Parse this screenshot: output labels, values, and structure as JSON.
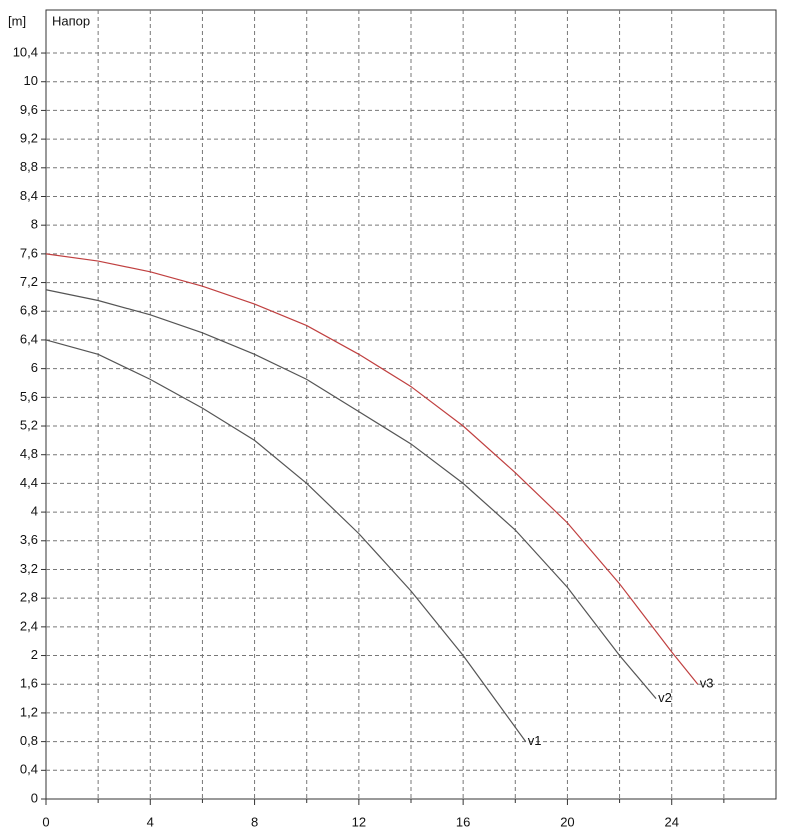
{
  "chart_data": {
    "type": "line",
    "y_unit": "[m]",
    "y_label": "Напор",
    "xlim": [
      0,
      28
    ],
    "ylim": [
      0,
      11
    ],
    "xticks": [
      0,
      4,
      8,
      12,
      16,
      20,
      24
    ],
    "x_minor_ticks": [
      2,
      6,
      10,
      14,
      18,
      22,
      26
    ],
    "yticks": [
      0,
      {
        "value": 0.4,
        "label": "0,4"
      },
      {
        "value": 0.8,
        "label": "0,8"
      },
      {
        "value": 1.2,
        "label": "1,2"
      },
      {
        "value": 1.6,
        "label": "1,6"
      },
      2,
      {
        "value": 2.4,
        "label": "2,4"
      },
      {
        "value": 2.8,
        "label": "2,8"
      },
      {
        "value": 3.2,
        "label": "3,2"
      },
      {
        "value": 3.6,
        "label": "3,6"
      },
      4,
      {
        "value": 4.4,
        "label": "4,4"
      },
      {
        "value": 4.8,
        "label": "4,8"
      },
      {
        "value": 5.2,
        "label": "5,2"
      },
      {
        "value": 5.6,
        "label": "5,6"
      },
      6,
      {
        "value": 6.4,
        "label": "6,4"
      },
      {
        "value": 6.8,
        "label": "6,8"
      },
      {
        "value": 7.2,
        "label": "7,2"
      },
      {
        "value": 7.6,
        "label": "7,6"
      },
      8,
      {
        "value": 8.4,
        "label": "8,4"
      },
      {
        "value": 8.8,
        "label": "8,8"
      },
      {
        "value": 9.2,
        "label": "9,2"
      },
      {
        "value": 9.6,
        "label": "9,6"
      },
      10,
      {
        "value": 10.4,
        "label": "10,4"
      }
    ],
    "grid": true,
    "series": [
      {
        "name": "v1",
        "color": "#555555",
        "x": [
          0,
          2,
          4,
          6,
          8,
          10,
          12,
          14,
          16,
          17,
          18.4
        ],
        "values": [
          6.4,
          6.2,
          5.85,
          5.45,
          5.0,
          4.4,
          3.7,
          2.9,
          2.0,
          1.5,
          0.8
        ]
      },
      {
        "name": "v2",
        "color": "#555555",
        "x": [
          0,
          2,
          4,
          6,
          8,
          10,
          12,
          14,
          16,
          18,
          20,
          22,
          23.4
        ],
        "values": [
          7.1,
          6.95,
          6.75,
          6.5,
          6.2,
          5.85,
          5.4,
          4.95,
          4.4,
          3.75,
          2.95,
          2.0,
          1.4
        ]
      },
      {
        "name": "v3",
        "color": "#c04040",
        "x": [
          0,
          2,
          4,
          6,
          8,
          10,
          12,
          14,
          16,
          18,
          20,
          22,
          24,
          25
        ],
        "values": [
          7.6,
          7.5,
          7.35,
          7.15,
          6.9,
          6.6,
          6.2,
          5.75,
          5.2,
          4.55,
          3.85,
          3.0,
          2.05,
          1.6
        ]
      }
    ]
  }
}
